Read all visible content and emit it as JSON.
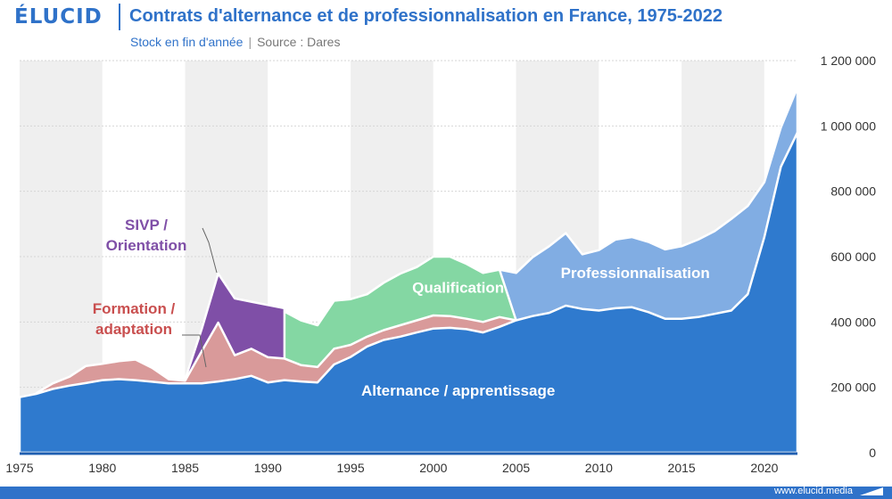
{
  "header": {
    "logo": "ÉLUCID",
    "title": "Contrats d'alternance et de professionnalisation en France, 1975-2022",
    "subtitle": "Stock en fin d'année",
    "separator": "|",
    "source": "Source : Dares"
  },
  "footer": {
    "url": "www.elucid.media"
  },
  "chart_data": {
    "type": "area",
    "stacked": true,
    "xlim": [
      1975,
      2022
    ],
    "ylim": [
      0,
      1200000
    ],
    "x_ticks": [
      1975,
      1980,
      1985,
      1990,
      1995,
      2000,
      2005,
      2010,
      2015,
      2020
    ],
    "y_ticks": [
      0,
      200000,
      400000,
      600000,
      800000,
      1000000,
      1200000
    ],
    "y_tick_labels": [
      "0",
      "200 000",
      "400 000",
      "600 000",
      "800 000",
      "1 000 000",
      "1 200 000"
    ],
    "y_axis_side": "right",
    "grid": true,
    "background_bands": "alternating by 5 years",
    "series": [
      {
        "name": "Alternance / apprentissage",
        "color": "#2f7ace",
        "label_color": "#ffffff",
        "label_year": 2001.5,
        "label_value": 175000,
        "points": [
          [
            1975,
            170000
          ],
          [
            1976,
            180000
          ],
          [
            1977,
            195000
          ],
          [
            1978,
            205000
          ],
          [
            1979,
            213000
          ],
          [
            1980,
            222000
          ],
          [
            1981,
            225000
          ],
          [
            1982,
            222000
          ],
          [
            1983,
            217000
          ],
          [
            1984,
            212000
          ],
          [
            1985,
            212000
          ],
          [
            1986,
            212000
          ],
          [
            1987,
            218000
          ],
          [
            1988,
            225000
          ],
          [
            1989,
            235000
          ],
          [
            1990,
            215000
          ],
          [
            1991,
            222000
          ],
          [
            1992,
            218000
          ],
          [
            1993,
            215000
          ],
          [
            1994,
            270000
          ],
          [
            1995,
            293000
          ],
          [
            1996,
            325000
          ],
          [
            1997,
            345000
          ],
          [
            1998,
            355000
          ],
          [
            1999,
            368000
          ],
          [
            2000,
            380000
          ],
          [
            2001,
            382000
          ],
          [
            2002,
            378000
          ],
          [
            2003,
            368000
          ],
          [
            2004,
            385000
          ],
          [
            2005,
            405000
          ],
          [
            2006,
            418000
          ],
          [
            2007,
            428000
          ],
          [
            2008,
            450000
          ],
          [
            2009,
            440000
          ],
          [
            2010,
            435000
          ],
          [
            2011,
            442000
          ],
          [
            2012,
            445000
          ],
          [
            2013,
            430000
          ],
          [
            2014,
            410000
          ],
          [
            2015,
            410000
          ],
          [
            2016,
            415000
          ],
          [
            2017,
            425000
          ],
          [
            2018,
            435000
          ],
          [
            2019,
            485000
          ],
          [
            2020,
            660000
          ],
          [
            2021,
            875000
          ],
          [
            2022,
            980000
          ]
        ]
      },
      {
        "name": "Formation / adaptation",
        "color": "#d99a9a",
        "label_color": "#c94f4f",
        "label_lines": [
          "Formation /",
          "adaptation"
        ],
        "points": [
          [
            1976,
            182000
          ],
          [
            1977,
            212000
          ],
          [
            1978,
            232000
          ],
          [
            1979,
            265000
          ],
          [
            1980,
            272000
          ],
          [
            1981,
            280000
          ],
          [
            1982,
            285000
          ],
          [
            1983,
            260000
          ],
          [
            1984,
            225000
          ],
          [
            1985,
            220000
          ],
          [
            1986,
            310000
          ],
          [
            1987,
            398000
          ],
          [
            1988,
            298000
          ],
          [
            1989,
            318000
          ],
          [
            1990,
            292000
          ],
          [
            1991,
            288000
          ],
          [
            1992,
            268000
          ],
          [
            1993,
            262000
          ],
          [
            1994,
            318000
          ],
          [
            1995,
            330000
          ],
          [
            1996,
            355000
          ],
          [
            1997,
            375000
          ],
          [
            1998,
            390000
          ],
          [
            1999,
            405000
          ],
          [
            2000,
            420000
          ],
          [
            2001,
            418000
          ],
          [
            2002,
            410000
          ],
          [
            2003,
            400000
          ],
          [
            2004,
            415000
          ],
          [
            2005,
            405000
          ]
        ]
      },
      {
        "name": "SIVP / Orientation",
        "color": "#7f4fa7",
        "label_color": "#7f4fa7",
        "label_lines": [
          "SIVP /",
          "Orientation"
        ],
        "points": [
          [
            1985,
            224000
          ],
          [
            1986,
            378000
          ],
          [
            1987,
            548000
          ],
          [
            1988,
            472000
          ],
          [
            1989,
            462000
          ],
          [
            1990,
            452000
          ],
          [
            1991,
            442000
          ]
        ]
      },
      {
        "name": "Qualification",
        "color": "#84d7a3",
        "label_color": "#ffffff",
        "label_year": 2001.5,
        "label_value": 490000,
        "points": [
          [
            1986,
            350000
          ],
          [
            1987,
            448000
          ],
          [
            1988,
            385000
          ],
          [
            1989,
            435000
          ],
          [
            1990,
            433000
          ],
          [
            1991,
            432000
          ],
          [
            1992,
            405000
          ],
          [
            1993,
            390000
          ],
          [
            1994,
            465000
          ],
          [
            1995,
            470000
          ],
          [
            1996,
            485000
          ],
          [
            1997,
            520000
          ],
          [
            1998,
            548000
          ],
          [
            1999,
            568000
          ],
          [
            2000,
            600000
          ],
          [
            2001,
            600000
          ],
          [
            2002,
            578000
          ],
          [
            2003,
            550000
          ],
          [
            2004,
            560000
          ],
          [
            2005,
            405000
          ]
        ]
      },
      {
        "name": "Professionnalisation",
        "color": "#81ade3",
        "label_color": "#ffffff",
        "label_year": 2012.2,
        "label_value": 535000,
        "points": [
          [
            2004,
            560000
          ],
          [
            2005,
            550000
          ],
          [
            2006,
            598000
          ],
          [
            2007,
            632000
          ],
          [
            2008,
            672000
          ],
          [
            2009,
            607000
          ],
          [
            2010,
            620000
          ],
          [
            2011,
            652000
          ],
          [
            2012,
            660000
          ],
          [
            2013,
            645000
          ],
          [
            2014,
            622000
          ],
          [
            2015,
            632000
          ],
          [
            2016,
            652000
          ],
          [
            2017,
            678000
          ],
          [
            2018,
            715000
          ],
          [
            2019,
            755000
          ],
          [
            2020,
            828000
          ],
          [
            2021,
            995000
          ],
          [
            2022,
            1118000
          ]
        ]
      }
    ]
  }
}
